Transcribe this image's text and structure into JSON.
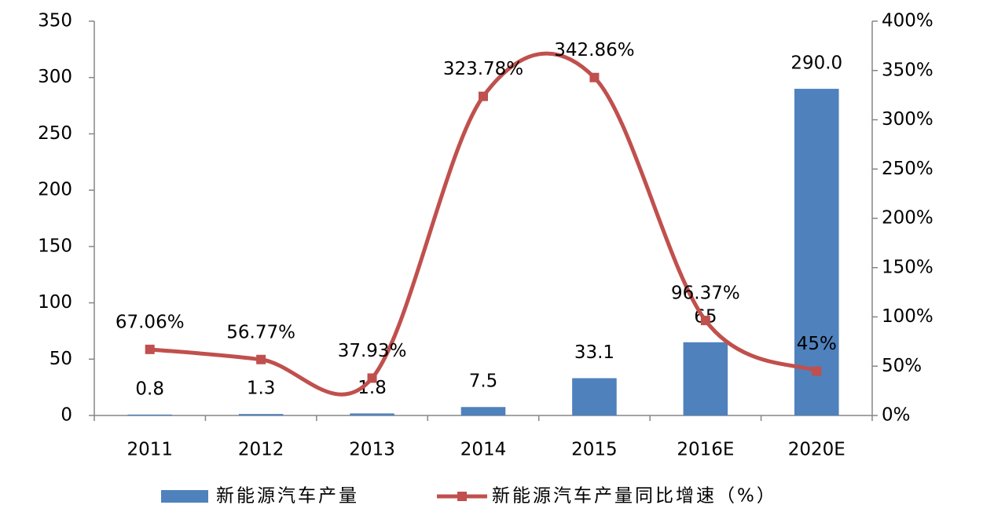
{
  "chart_data": {
    "type": "bar",
    "categories": [
      "2011",
      "2012",
      "2013",
      "2014",
      "2015",
      "2016E",
      "2020E"
    ],
    "series": [
      {
        "name": "新能源汽车产量",
        "type": "bar",
        "color": "#4f81bd",
        "values": [
          0.8,
          1.3,
          1.8,
          7.5,
          33.1,
          65,
          290
        ],
        "value_labels": [
          "0.8",
          "1.3",
          "1.8",
          "7.5",
          "33.1",
          "65",
          "290.0"
        ]
      },
      {
        "name": "新能源汽车产量同比增速（%）",
        "type": "line",
        "axis": "y2",
        "color": "#c0504d",
        "values": [
          67.06,
          56.77,
          37.93,
          323.78,
          342.86,
          96.37,
          45
        ],
        "value_labels": [
          "67.06%",
          "56.77%",
          "37.93%",
          "323.78%",
          "342.86%",
          "96.37%",
          "45%"
        ]
      }
    ],
    "ylim": [
      0,
      350
    ],
    "yticks": [
      0,
      50,
      100,
      150,
      200,
      250,
      300,
      350
    ],
    "y2lim": [
      0,
      400
    ],
    "y2ticks": [
      {
        "value": 0,
        "label": "0%"
      },
      {
        "value": 50,
        "label": "50%"
      },
      {
        "value": 100,
        "label": "100%"
      },
      {
        "value": 150,
        "label": "150%"
      },
      {
        "value": 200,
        "label": "200%"
      },
      {
        "value": 250,
        "label": "250%"
      },
      {
        "value": 300,
        "label": "300%"
      },
      {
        "value": 350,
        "label": "350%"
      },
      {
        "value": 400,
        "label": "400%"
      }
    ],
    "legend": "bottom"
  }
}
